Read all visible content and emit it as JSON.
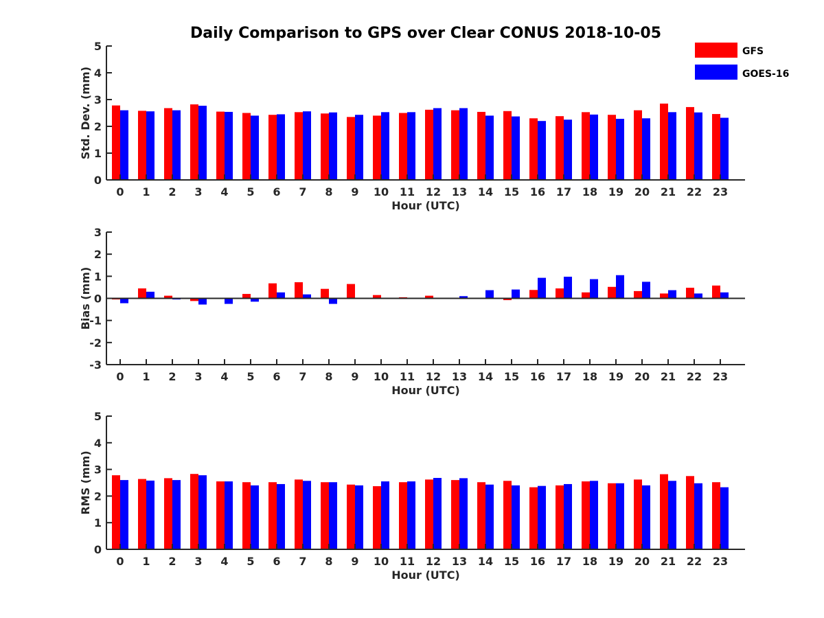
{
  "chart_data": {
    "type": "bar",
    "title": "Daily Comparison to GPS over Clear CONUS 2018-10-05",
    "categories": [
      "0",
      "1",
      "2",
      "3",
      "4",
      "5",
      "6",
      "7",
      "8",
      "9",
      "10",
      "11",
      "12",
      "13",
      "14",
      "15",
      "16",
      "17",
      "18",
      "19",
      "20",
      "21",
      "22",
      "23"
    ],
    "legend": {
      "placement": "top-right",
      "entries": [
        {
          "name": "GFS",
          "color": "#ff0000"
        },
        {
          "name": "GOES-16",
          "color": "#0000ff"
        }
      ]
    },
    "subplots": [
      {
        "ylabel": "Std. Dev. (mm)",
        "xlabel": "Hour (UTC)",
        "ylim": [
          0,
          5
        ],
        "yticks": [
          "0",
          "1",
          "2",
          "3",
          "4",
          "5"
        ],
        "series": [
          {
            "name": "GFS",
            "color": "#ff0000",
            "values": [
              2.78,
              2.58,
              2.68,
              2.82,
              2.55,
              2.5,
              2.43,
              2.53,
              2.48,
              2.35,
              2.4,
              2.5,
              2.62,
              2.6,
              2.54,
              2.57,
              2.3,
              2.38,
              2.53,
              2.43,
              2.6,
              2.85,
              2.72,
              2.46
            ]
          },
          {
            "name": "GOES-16",
            "color": "#0000ff",
            "values": [
              2.6,
              2.56,
              2.6,
              2.77,
              2.54,
              2.4,
              2.45,
              2.56,
              2.52,
              2.43,
              2.53,
              2.53,
              2.68,
              2.68,
              2.4,
              2.37,
              2.2,
              2.25,
              2.44,
              2.28,
              2.3,
              2.53,
              2.52,
              2.32
            ]
          }
        ]
      },
      {
        "ylabel": "Bias (mm)",
        "xlabel": "Hour (UTC)",
        "ylim": [
          -3,
          3
        ],
        "yticks": [
          "-3",
          "-2",
          "-1",
          "0",
          "1",
          "2",
          "3"
        ],
        "series": [
          {
            "name": "GFS",
            "color": "#ff0000",
            "values": [
              -0.05,
              0.45,
              0.12,
              -0.12,
              0.03,
              0.2,
              0.68,
              0.73,
              0.43,
              0.65,
              0.15,
              0.05,
              0.12,
              0.03,
              0.0,
              -0.08,
              0.38,
              0.45,
              0.27,
              0.52,
              0.33,
              0.22,
              0.48,
              0.58
            ]
          },
          {
            "name": "GOES-16",
            "color": "#0000ff",
            "values": [
              -0.22,
              0.3,
              -0.05,
              -0.28,
              -0.25,
              -0.15,
              0.27,
              0.18,
              -0.25,
              0.03,
              0.0,
              -0.03,
              0.0,
              0.1,
              0.37,
              0.4,
              0.93,
              0.98,
              0.87,
              1.05,
              0.75,
              0.37,
              0.22,
              0.27
            ]
          }
        ]
      },
      {
        "ylabel": "RMS (mm)",
        "xlabel": "Hour (UTC)",
        "ylim": [
          0,
          5
        ],
        "yticks": [
          "0",
          "1",
          "2",
          "3",
          "4",
          "5"
        ],
        "series": [
          {
            "name": "GFS",
            "color": "#ff0000",
            "values": [
              2.78,
              2.64,
              2.67,
              2.83,
              2.55,
              2.52,
              2.52,
              2.62,
              2.52,
              2.43,
              2.37,
              2.52,
              2.62,
              2.6,
              2.52,
              2.57,
              2.33,
              2.4,
              2.55,
              2.48,
              2.62,
              2.82,
              2.75,
              2.52
            ]
          },
          {
            "name": "GOES-16",
            "color": "#0000ff",
            "values": [
              2.6,
              2.58,
              2.6,
              2.78,
              2.55,
              2.4,
              2.45,
              2.57,
              2.52,
              2.4,
              2.55,
              2.55,
              2.68,
              2.67,
              2.43,
              2.4,
              2.38,
              2.45,
              2.57,
              2.48,
              2.4,
              2.57,
              2.48,
              2.33
            ]
          }
        ]
      }
    ]
  }
}
